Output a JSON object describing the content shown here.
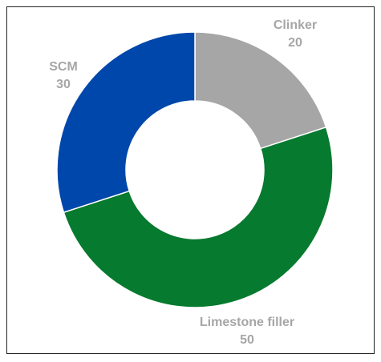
{
  "chart_data": {
    "type": "pie",
    "variant": "donut",
    "title": "",
    "slices": [
      {
        "label": "Clinker",
        "value": 20,
        "color": "#a6a6a6"
      },
      {
        "label": "Limestone filler",
        "value": 50,
        "color": "#067a2e"
      },
      {
        "label": "SCM",
        "value": 30,
        "color": "#0047ab"
      }
    ],
    "start_angle_deg": 0,
    "direction": "clockwise",
    "legend": "none",
    "data_labels": "category name and value, outside slices",
    "label_color": "#a6a6a6"
  }
}
